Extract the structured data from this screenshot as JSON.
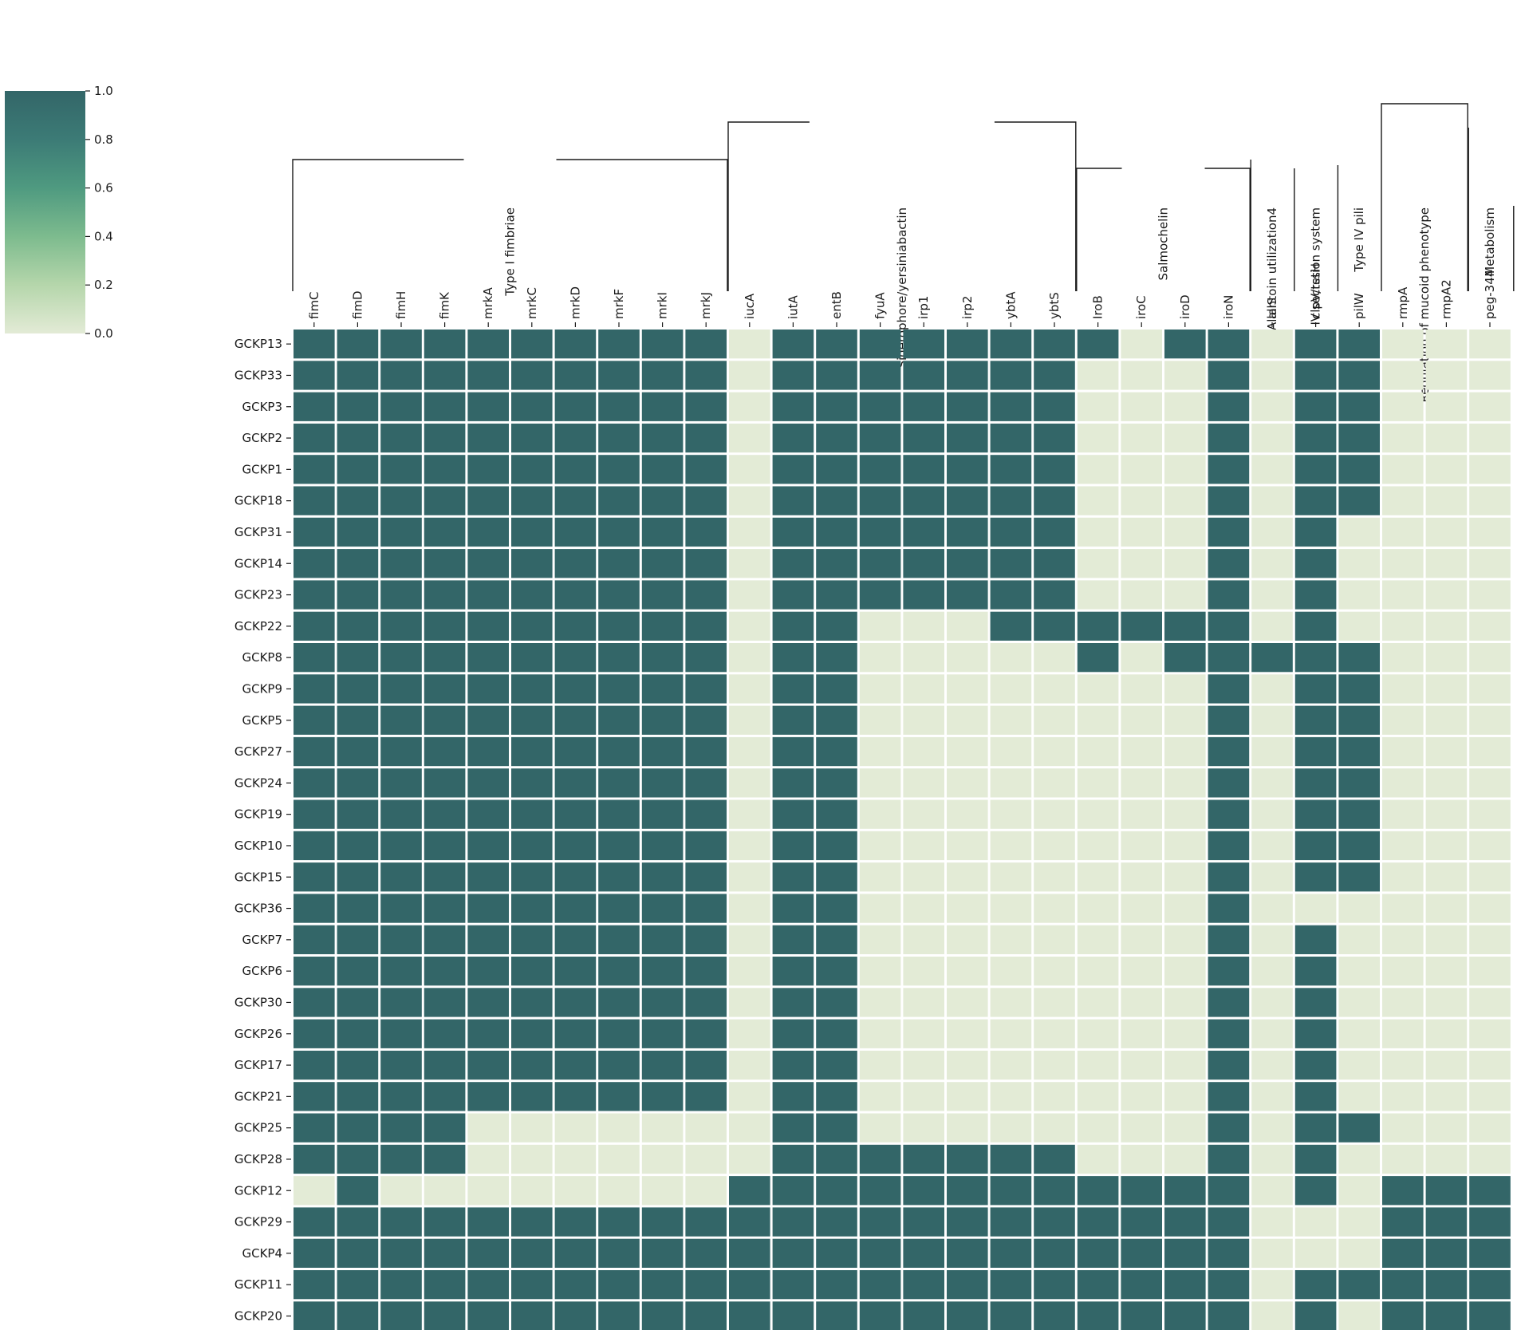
{
  "chart_data": {
    "type": "heatmap",
    "title": "",
    "xlabel": "",
    "ylabel": "",
    "genes": [
      "fimC",
      "fimD",
      "fimH",
      "fimK",
      "mrkA",
      "mrkC",
      "mrkD",
      "mrkF",
      "mrkI",
      "mrkJ",
      "iucA",
      "iutA",
      "entB",
      "fyuA",
      "irp1",
      "irp2",
      "ybtA",
      "ybtS",
      "IroB",
      "iroC",
      "iroD",
      "iroN",
      "allS",
      "clpV/tssH",
      "pilW",
      "rmpA",
      "rmpA2",
      "peg-344"
    ],
    "samples": [
      "GCKP13",
      "GCKP33",
      "GCKP3",
      "GCKP2",
      "GCKP1",
      "GCKP18",
      "GCKP31",
      "GCKP14",
      "GCKP23",
      "GCKP22",
      "GCKP8",
      "GCKP9",
      "GCKP5",
      "GCKP27",
      "GCKP24",
      "GCKP19",
      "GCKP10",
      "GCKP15",
      "GCKP36",
      "GCKP7",
      "GCKP6",
      "GCKP30",
      "GCKP26",
      "GCKP17",
      "GCKP21",
      "GCKP25",
      "GCKP28",
      "GCKP12",
      "GCKP29",
      "GCKP4",
      "GCKP11",
      "GCKP20"
    ],
    "groups": [
      {
        "label": "Type I fimbriae",
        "start": 0,
        "end": 9
      },
      {
        "label": "Siderophore/yersiniabactin",
        "start": 10,
        "end": 17
      },
      {
        "label": "Salmochelin",
        "start": 18,
        "end": 21
      },
      {
        "label": "Allantoin utilization4",
        "start": 22,
        "end": 22
      },
      {
        "label": "Type IV secretion system",
        "start": 23,
        "end": 23
      },
      {
        "label": "Type IV pili",
        "start": 24,
        "end": 24
      },
      {
        "label": "Regulation of mucoid phenotype",
        "start": 25,
        "end": 26
      },
      {
        "label": "Metabolism",
        "start": 27,
        "end": 27
      }
    ],
    "matrix": [
      [
        1,
        1,
        1,
        1,
        1,
        1,
        1,
        1,
        1,
        1,
        0,
        1,
        1,
        1,
        1,
        1,
        1,
        1,
        1,
        0,
        1,
        1,
        0,
        1,
        1,
        0,
        0,
        0
      ],
      [
        1,
        1,
        1,
        1,
        1,
        1,
        1,
        1,
        1,
        1,
        0,
        1,
        1,
        1,
        1,
        1,
        1,
        1,
        0,
        0,
        0,
        1,
        0,
        1,
        1,
        0,
        0,
        0
      ],
      [
        1,
        1,
        1,
        1,
        1,
        1,
        1,
        1,
        1,
        1,
        0,
        1,
        1,
        1,
        1,
        1,
        1,
        1,
        0,
        0,
        0,
        1,
        0,
        1,
        1,
        0,
        0,
        0
      ],
      [
        1,
        1,
        1,
        1,
        1,
        1,
        1,
        1,
        1,
        1,
        0,
        1,
        1,
        1,
        1,
        1,
        1,
        1,
        0,
        0,
        0,
        1,
        0,
        1,
        1,
        0,
        0,
        0
      ],
      [
        1,
        1,
        1,
        1,
        1,
        1,
        1,
        1,
        1,
        1,
        0,
        1,
        1,
        1,
        1,
        1,
        1,
        1,
        0,
        0,
        0,
        1,
        0,
        1,
        1,
        0,
        0,
        0
      ],
      [
        1,
        1,
        1,
        1,
        1,
        1,
        1,
        1,
        1,
        1,
        0,
        1,
        1,
        1,
        1,
        1,
        1,
        1,
        0,
        0,
        0,
        1,
        0,
        1,
        1,
        0,
        0,
        0
      ],
      [
        1,
        1,
        1,
        1,
        1,
        1,
        1,
        1,
        1,
        1,
        0,
        1,
        1,
        1,
        1,
        1,
        1,
        1,
        0,
        0,
        0,
        1,
        0,
        1,
        0,
        0,
        0,
        0
      ],
      [
        1,
        1,
        1,
        1,
        1,
        1,
        1,
        1,
        1,
        1,
        0,
        1,
        1,
        1,
        1,
        1,
        1,
        1,
        0,
        0,
        0,
        1,
        0,
        1,
        0,
        0,
        0,
        0
      ],
      [
        1,
        1,
        1,
        1,
        1,
        1,
        1,
        1,
        1,
        1,
        0,
        1,
        1,
        1,
        1,
        1,
        1,
        1,
        0,
        0,
        0,
        1,
        0,
        1,
        0,
        0,
        0,
        0
      ],
      [
        1,
        1,
        1,
        1,
        1,
        1,
        1,
        1,
        1,
        1,
        0,
        1,
        1,
        0,
        0,
        0,
        1,
        1,
        1,
        1,
        1,
        1,
        0,
        1,
        0,
        0,
        0,
        0
      ],
      [
        1,
        1,
        1,
        1,
        1,
        1,
        1,
        1,
        1,
        1,
        0,
        1,
        1,
        0,
        0,
        0,
        0,
        0,
        1,
        0,
        1,
        1,
        1,
        1,
        1,
        0,
        0,
        0
      ],
      [
        1,
        1,
        1,
        1,
        1,
        1,
        1,
        1,
        1,
        1,
        0,
        1,
        1,
        0,
        0,
        0,
        0,
        0,
        0,
        0,
        0,
        1,
        0,
        1,
        1,
        0,
        0,
        0
      ],
      [
        1,
        1,
        1,
        1,
        1,
        1,
        1,
        1,
        1,
        1,
        0,
        1,
        1,
        0,
        0,
        0,
        0,
        0,
        0,
        0,
        0,
        1,
        0,
        1,
        1,
        0,
        0,
        0
      ],
      [
        1,
        1,
        1,
        1,
        1,
        1,
        1,
        1,
        1,
        1,
        0,
        1,
        1,
        0,
        0,
        0,
        0,
        0,
        0,
        0,
        0,
        1,
        0,
        1,
        1,
        0,
        0,
        0
      ],
      [
        1,
        1,
        1,
        1,
        1,
        1,
        1,
        1,
        1,
        1,
        0,
        1,
        1,
        0,
        0,
        0,
        0,
        0,
        0,
        0,
        0,
        1,
        0,
        1,
        1,
        0,
        0,
        0
      ],
      [
        1,
        1,
        1,
        1,
        1,
        1,
        1,
        1,
        1,
        1,
        0,
        1,
        1,
        0,
        0,
        0,
        0,
        0,
        0,
        0,
        0,
        1,
        0,
        1,
        1,
        0,
        0,
        0
      ],
      [
        1,
        1,
        1,
        1,
        1,
        1,
        1,
        1,
        1,
        1,
        0,
        1,
        1,
        0,
        0,
        0,
        0,
        0,
        0,
        0,
        0,
        1,
        0,
        1,
        1,
        0,
        0,
        0
      ],
      [
        1,
        1,
        1,
        1,
        1,
        1,
        1,
        1,
        1,
        1,
        0,
        1,
        1,
        0,
        0,
        0,
        0,
        0,
        0,
        0,
        0,
        1,
        0,
        1,
        1,
        0,
        0,
        0
      ],
      [
        1,
        1,
        1,
        1,
        1,
        1,
        1,
        1,
        1,
        1,
        0,
        1,
        1,
        0,
        0,
        0,
        0,
        0,
        0,
        0,
        0,
        1,
        0,
        0,
        0,
        0,
        0,
        0
      ],
      [
        1,
        1,
        1,
        1,
        1,
        1,
        1,
        1,
        1,
        1,
        0,
        1,
        1,
        0,
        0,
        0,
        0,
        0,
        0,
        0,
        0,
        1,
        0,
        1,
        0,
        0,
        0,
        0
      ],
      [
        1,
        1,
        1,
        1,
        1,
        1,
        1,
        1,
        1,
        1,
        0,
        1,
        1,
        0,
        0,
        0,
        0,
        0,
        0,
        0,
        0,
        1,
        0,
        1,
        0,
        0,
        0,
        0
      ],
      [
        1,
        1,
        1,
        1,
        1,
        1,
        1,
        1,
        1,
        1,
        0,
        1,
        1,
        0,
        0,
        0,
        0,
        0,
        0,
        0,
        0,
        1,
        0,
        1,
        0,
        0,
        0,
        0
      ],
      [
        1,
        1,
        1,
        1,
        1,
        1,
        1,
        1,
        1,
        1,
        0,
        1,
        1,
        0,
        0,
        0,
        0,
        0,
        0,
        0,
        0,
        1,
        0,
        1,
        0,
        0,
        0,
        0
      ],
      [
        1,
        1,
        1,
        1,
        1,
        1,
        1,
        1,
        1,
        1,
        0,
        1,
        1,
        0,
        0,
        0,
        0,
        0,
        0,
        0,
        0,
        1,
        0,
        1,
        0,
        0,
        0,
        0
      ],
      [
        1,
        1,
        1,
        1,
        1,
        1,
        1,
        1,
        1,
        1,
        0,
        1,
        1,
        0,
        0,
        0,
        0,
        0,
        0,
        0,
        0,
        1,
        0,
        1,
        0,
        0,
        0,
        0
      ],
      [
        1,
        1,
        1,
        1,
        0,
        0,
        0,
        0,
        0,
        0,
        0,
        1,
        1,
        0,
        0,
        0,
        0,
        0,
        0,
        0,
        0,
        1,
        0,
        1,
        1,
        0,
        0,
        0
      ],
      [
        1,
        1,
        1,
        1,
        0,
        0,
        0,
        0,
        0,
        0,
        0,
        1,
        1,
        1,
        1,
        1,
        1,
        1,
        0,
        0,
        0,
        1,
        0,
        1,
        0,
        0,
        0,
        0
      ],
      [
        0,
        1,
        0,
        0,
        0,
        0,
        0,
        0,
        0,
        0,
        1,
        1,
        1,
        1,
        1,
        1,
        1,
        1,
        1,
        1,
        1,
        1,
        0,
        1,
        0,
        1,
        1,
        1
      ],
      [
        1,
        1,
        1,
        1,
        1,
        1,
        1,
        1,
        1,
        1,
        1,
        1,
        1,
        1,
        1,
        1,
        1,
        1,
        1,
        1,
        1,
        1,
        0,
        0,
        0,
        1,
        1,
        1
      ],
      [
        1,
        1,
        1,
        1,
        1,
        1,
        1,
        1,
        1,
        1,
        1,
        1,
        1,
        1,
        1,
        1,
        1,
        1,
        1,
        1,
        1,
        1,
        0,
        0,
        0,
        1,
        1,
        1
      ],
      [
        1,
        1,
        1,
        1,
        1,
        1,
        1,
        1,
        1,
        1,
        1,
        1,
        1,
        1,
        1,
        1,
        1,
        1,
        1,
        1,
        1,
        1,
        0,
        1,
        1,
        1,
        1,
        1
      ],
      [
        1,
        1,
        1,
        1,
        1,
        1,
        1,
        1,
        1,
        1,
        1,
        1,
        1,
        1,
        1,
        1,
        1,
        1,
        1,
        1,
        1,
        1,
        0,
        1,
        0,
        1,
        1,
        1
      ]
    ],
    "value_range": [
      0,
      1
    ],
    "colorbar": {
      "ticks": [
        "0.0",
        "0.2",
        "0.4",
        "0.6",
        "0.8",
        "1.0"
      ],
      "tick_values": [
        0,
        0.2,
        0.4,
        0.6,
        0.8,
        1.0
      ],
      "colors": [
        "#e3ebd6",
        "#b5d6ab",
        "#7dbb8e",
        "#4f9a80",
        "#3c7b76",
        "#336668"
      ],
      "placement": "top-left"
    },
    "cell_colors": {
      "present": "#336668",
      "absent": "#e3ebd6"
    },
    "grid": false
  }
}
